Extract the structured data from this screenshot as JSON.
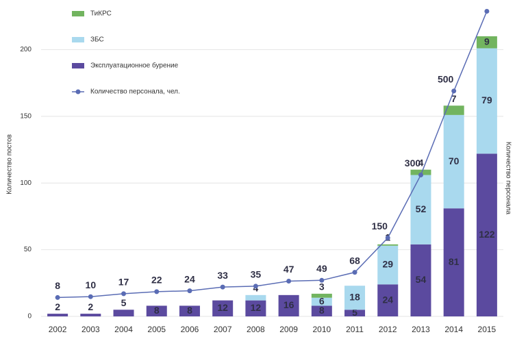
{
  "chart_data": {
    "type": "bar",
    "stacked": true,
    "x_axis_label": "",
    "y_axis_label": "Количество постов",
    "y2_axis_label": "Количество персонала",
    "categories": [
      "2002",
      "2003",
      "2004",
      "2005",
      "2006",
      "2007",
      "2008",
      "2009",
      "2010",
      "2011",
      "2012",
      "2013",
      "2014",
      "2015"
    ],
    "series": [
      {
        "name": "Эксплуатационное бурение",
        "color": "#5b4a9f",
        "values": [
          2,
          2,
          5,
          8,
          8,
          12,
          12,
          16,
          8,
          5,
          24,
          54,
          81,
          122
        ]
      },
      {
        "name": "ЗБС",
        "color": "#a9d9ee",
        "values": [
          0,
          0,
          0,
          0,
          0,
          0,
          4,
          0,
          6,
          18,
          29,
          52,
          70,
          79
        ]
      },
      {
        "name": "ТиКРС",
        "color": "#72b45f",
        "values": [
          0,
          0,
          0,
          0,
          0,
          0,
          0,
          0,
          3,
          0,
          1,
          4,
          7,
          9
        ]
      },
      {
        "name": "Количество персонала, чел.",
        "type": "line",
        "axis": "y2",
        "color": "#5a6cb4",
        "values": [
          8,
          10,
          17,
          22,
          24,
          33,
          35,
          47,
          49,
          68,
          150,
          300,
          500,
          690
        ],
        "value_labels": [
          "8",
          "10",
          "17",
          "22",
          "24",
          "33",
          "35",
          "47",
          "49",
          "68",
          "150",
          "300",
          "500",
          null
        ]
      }
    ],
    "ylim": [
      0,
      230
    ],
    "yticks": [
      0,
      50,
      100,
      150,
      200
    ],
    "y2lim": [
      -37,
      694
    ],
    "grid": true,
    "legend": "top-left"
  }
}
